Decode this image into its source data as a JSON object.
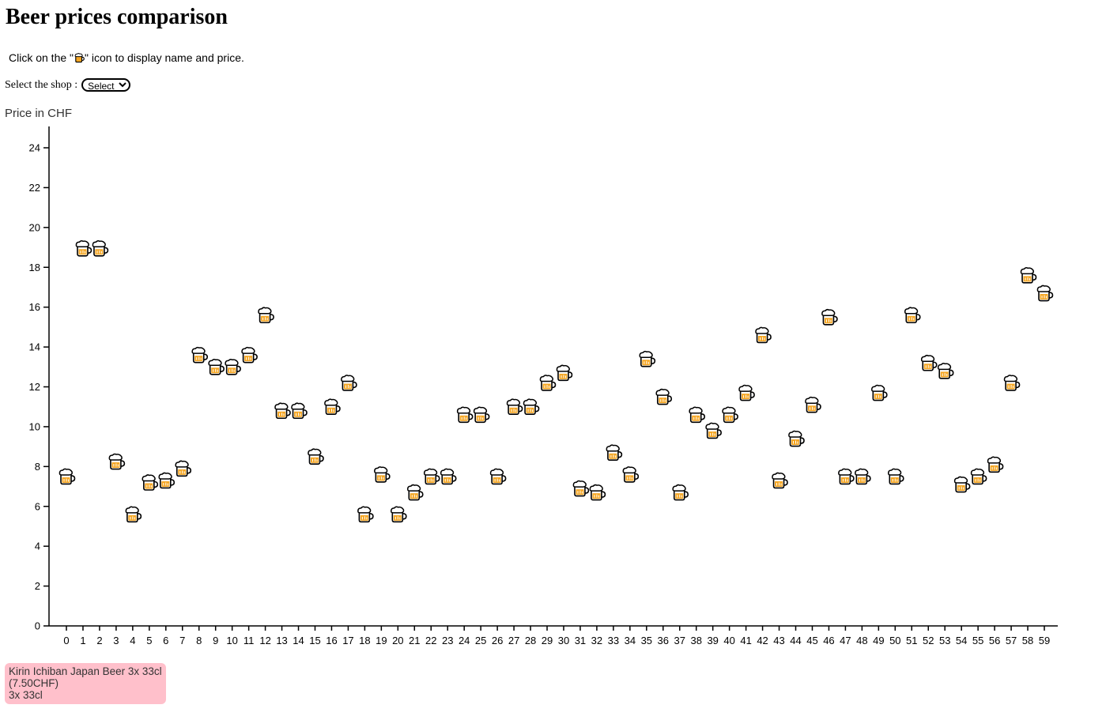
{
  "title": "Beer prices comparison",
  "instruction": {
    "before": "Click on the \"",
    "icon": "beer-mug-icon",
    "after": "\" icon to display name and price."
  },
  "shop_selector": {
    "label": "Select the shop :",
    "selected": "Select"
  },
  "tooltip": {
    "name": "Kirin Ichiban Japan Beer 3x 33cl",
    "price": "(7.50CHF)",
    "size": "3x 33cl"
  },
  "chart_data": {
    "type": "scatter",
    "ylabel": "Price in CHF",
    "xlabel": "",
    "title": "",
    "xlim": [
      0,
      59
    ],
    "ylim": [
      0,
      25
    ],
    "yticks": [
      0,
      2,
      4,
      6,
      8,
      10,
      12,
      14,
      16,
      18,
      20,
      22,
      24
    ],
    "marker": "beer-mug-icon",
    "grid": false,
    "x": [
      0,
      1,
      2,
      3,
      4,
      5,
      6,
      7,
      8,
      9,
      10,
      11,
      12,
      13,
      14,
      15,
      16,
      17,
      18,
      19,
      20,
      21,
      22,
      23,
      24,
      25,
      26,
      27,
      28,
      29,
      30,
      31,
      32,
      33,
      34,
      35,
      36,
      37,
      38,
      39,
      40,
      41,
      42,
      43,
      44,
      45,
      46,
      47,
      48,
      49,
      50,
      51,
      52,
      53,
      54,
      55,
      56,
      57,
      58,
      59
    ],
    "y": [
      7.5,
      18.95,
      18.95,
      8.25,
      5.6,
      7.2,
      7.3,
      7.9,
      13.6,
      13.0,
      13.0,
      13.6,
      15.6,
      10.8,
      10.8,
      8.5,
      11.0,
      12.2,
      5.6,
      7.6,
      5.6,
      6.7,
      7.5,
      7.5,
      10.6,
      10.6,
      7.5,
      11.0,
      11.0,
      12.2,
      12.7,
      6.9,
      6.7,
      8.7,
      7.6,
      13.4,
      11.5,
      6.7,
      10.6,
      9.8,
      10.6,
      11.7,
      14.6,
      7.3,
      9.4,
      11.1,
      15.5,
      7.5,
      7.5,
      11.7,
      7.5,
      15.6,
      13.2,
      12.8,
      7.1,
      7.5,
      8.1,
      12.2,
      17.6,
      16.7
    ]
  }
}
